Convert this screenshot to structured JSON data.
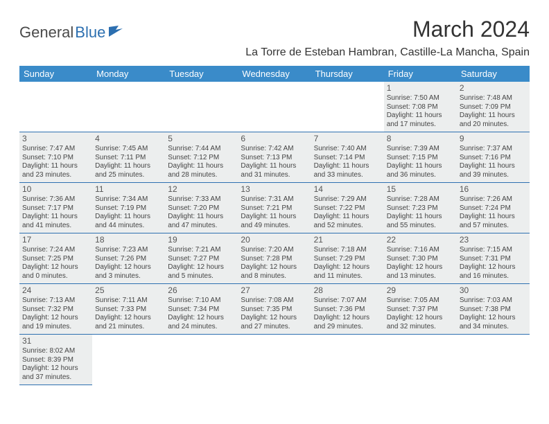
{
  "logo": {
    "part1": "General",
    "part2": "Blue"
  },
  "title": "March 2024",
  "location": "La Torre de Esteban Hambran, Castille-La Mancha, Spain",
  "colors": {
    "header_bg": "#3a8bc9",
    "header_text": "#ffffff",
    "border": "#2c6fb0",
    "shaded": "#eceeee",
    "logo_gray": "#4a4a4a",
    "logo_blue": "#2c6fb0"
  },
  "weekdays": [
    "Sunday",
    "Monday",
    "Tuesday",
    "Wednesday",
    "Thursday",
    "Friday",
    "Saturday"
  ],
  "weeks": [
    [
      {
        "blank": true
      },
      {
        "blank": true
      },
      {
        "blank": true
      },
      {
        "blank": true
      },
      {
        "blank": true
      },
      {
        "day": "1",
        "sunrise": "Sunrise: 7:50 AM",
        "sunset": "Sunset: 7:08 PM",
        "daylight": "Daylight: 11 hours and 17 minutes."
      },
      {
        "day": "2",
        "sunrise": "Sunrise: 7:48 AM",
        "sunset": "Sunset: 7:09 PM",
        "daylight": "Daylight: 11 hours and 20 minutes."
      }
    ],
    [
      {
        "day": "3",
        "sunrise": "Sunrise: 7:47 AM",
        "sunset": "Sunset: 7:10 PM",
        "daylight": "Daylight: 11 hours and 23 minutes."
      },
      {
        "day": "4",
        "sunrise": "Sunrise: 7:45 AM",
        "sunset": "Sunset: 7:11 PM",
        "daylight": "Daylight: 11 hours and 25 minutes."
      },
      {
        "day": "5",
        "sunrise": "Sunrise: 7:44 AM",
        "sunset": "Sunset: 7:12 PM",
        "daylight": "Daylight: 11 hours and 28 minutes."
      },
      {
        "day": "6",
        "sunrise": "Sunrise: 7:42 AM",
        "sunset": "Sunset: 7:13 PM",
        "daylight": "Daylight: 11 hours and 31 minutes."
      },
      {
        "day": "7",
        "sunrise": "Sunrise: 7:40 AM",
        "sunset": "Sunset: 7:14 PM",
        "daylight": "Daylight: 11 hours and 33 minutes."
      },
      {
        "day": "8",
        "sunrise": "Sunrise: 7:39 AM",
        "sunset": "Sunset: 7:15 PM",
        "daylight": "Daylight: 11 hours and 36 minutes."
      },
      {
        "day": "9",
        "sunrise": "Sunrise: 7:37 AM",
        "sunset": "Sunset: 7:16 PM",
        "daylight": "Daylight: 11 hours and 39 minutes."
      }
    ],
    [
      {
        "day": "10",
        "sunrise": "Sunrise: 7:36 AM",
        "sunset": "Sunset: 7:17 PM",
        "daylight": "Daylight: 11 hours and 41 minutes."
      },
      {
        "day": "11",
        "sunrise": "Sunrise: 7:34 AM",
        "sunset": "Sunset: 7:19 PM",
        "daylight": "Daylight: 11 hours and 44 minutes."
      },
      {
        "day": "12",
        "sunrise": "Sunrise: 7:33 AM",
        "sunset": "Sunset: 7:20 PM",
        "daylight": "Daylight: 11 hours and 47 minutes."
      },
      {
        "day": "13",
        "sunrise": "Sunrise: 7:31 AM",
        "sunset": "Sunset: 7:21 PM",
        "daylight": "Daylight: 11 hours and 49 minutes."
      },
      {
        "day": "14",
        "sunrise": "Sunrise: 7:29 AM",
        "sunset": "Sunset: 7:22 PM",
        "daylight": "Daylight: 11 hours and 52 minutes."
      },
      {
        "day": "15",
        "sunrise": "Sunrise: 7:28 AM",
        "sunset": "Sunset: 7:23 PM",
        "daylight": "Daylight: 11 hours and 55 minutes."
      },
      {
        "day": "16",
        "sunrise": "Sunrise: 7:26 AM",
        "sunset": "Sunset: 7:24 PM",
        "daylight": "Daylight: 11 hours and 57 minutes."
      }
    ],
    [
      {
        "day": "17",
        "sunrise": "Sunrise: 7:24 AM",
        "sunset": "Sunset: 7:25 PM",
        "daylight": "Daylight: 12 hours and 0 minutes."
      },
      {
        "day": "18",
        "sunrise": "Sunrise: 7:23 AM",
        "sunset": "Sunset: 7:26 PM",
        "daylight": "Daylight: 12 hours and 3 minutes."
      },
      {
        "day": "19",
        "sunrise": "Sunrise: 7:21 AM",
        "sunset": "Sunset: 7:27 PM",
        "daylight": "Daylight: 12 hours and 5 minutes."
      },
      {
        "day": "20",
        "sunrise": "Sunrise: 7:20 AM",
        "sunset": "Sunset: 7:28 PM",
        "daylight": "Daylight: 12 hours and 8 minutes."
      },
      {
        "day": "21",
        "sunrise": "Sunrise: 7:18 AM",
        "sunset": "Sunset: 7:29 PM",
        "daylight": "Daylight: 12 hours and 11 minutes."
      },
      {
        "day": "22",
        "sunrise": "Sunrise: 7:16 AM",
        "sunset": "Sunset: 7:30 PM",
        "daylight": "Daylight: 12 hours and 13 minutes."
      },
      {
        "day": "23",
        "sunrise": "Sunrise: 7:15 AM",
        "sunset": "Sunset: 7:31 PM",
        "daylight": "Daylight: 12 hours and 16 minutes."
      }
    ],
    [
      {
        "day": "24",
        "sunrise": "Sunrise: 7:13 AM",
        "sunset": "Sunset: 7:32 PM",
        "daylight": "Daylight: 12 hours and 19 minutes."
      },
      {
        "day": "25",
        "sunrise": "Sunrise: 7:11 AM",
        "sunset": "Sunset: 7:33 PM",
        "daylight": "Daylight: 12 hours and 21 minutes."
      },
      {
        "day": "26",
        "sunrise": "Sunrise: 7:10 AM",
        "sunset": "Sunset: 7:34 PM",
        "daylight": "Daylight: 12 hours and 24 minutes."
      },
      {
        "day": "27",
        "sunrise": "Sunrise: 7:08 AM",
        "sunset": "Sunset: 7:35 PM",
        "daylight": "Daylight: 12 hours and 27 minutes."
      },
      {
        "day": "28",
        "sunrise": "Sunrise: 7:07 AM",
        "sunset": "Sunset: 7:36 PM",
        "daylight": "Daylight: 12 hours and 29 minutes."
      },
      {
        "day": "29",
        "sunrise": "Sunrise: 7:05 AM",
        "sunset": "Sunset: 7:37 PM",
        "daylight": "Daylight: 12 hours and 32 minutes."
      },
      {
        "day": "30",
        "sunrise": "Sunrise: 7:03 AM",
        "sunset": "Sunset: 7:38 PM",
        "daylight": "Daylight: 12 hours and 34 minutes."
      }
    ],
    [
      {
        "day": "31",
        "sunrise": "Sunrise: 8:02 AM",
        "sunset": "Sunset: 8:39 PM",
        "daylight": "Daylight: 12 hours and 37 minutes."
      },
      {
        "blank": true
      },
      {
        "blank": true
      },
      {
        "blank": true
      },
      {
        "blank": true
      },
      {
        "blank": true
      },
      {
        "blank": true
      }
    ]
  ]
}
